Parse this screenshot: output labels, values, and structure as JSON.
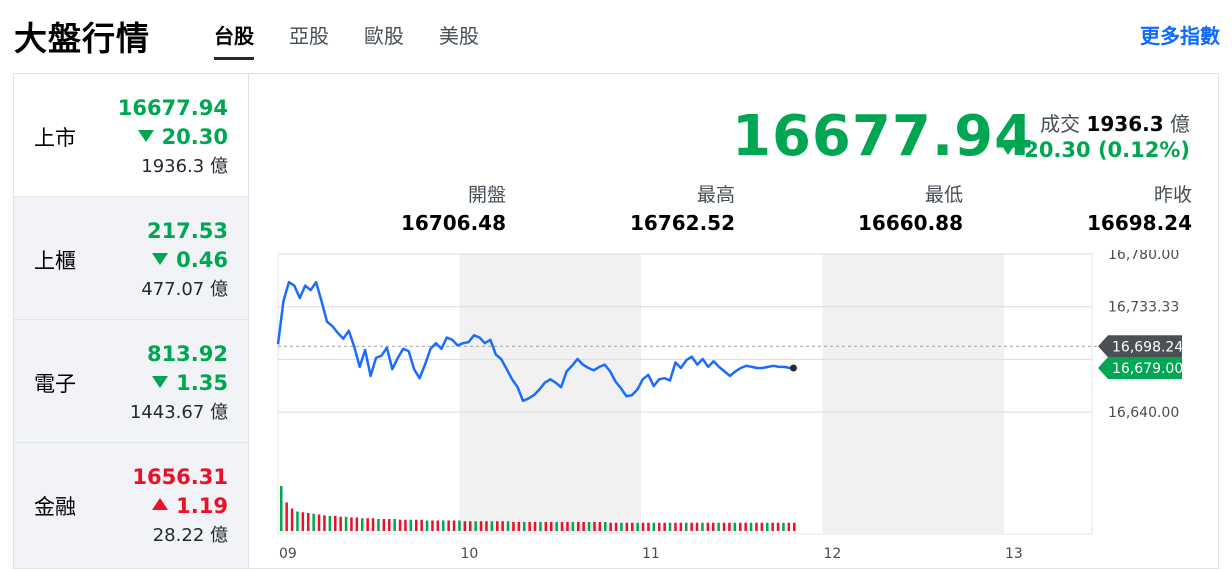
{
  "header": {
    "title": "大盤行情",
    "tabs": [
      "台股",
      "亞股",
      "歐股",
      "美股"
    ],
    "active_tab": "台股",
    "more_label": "更多指數"
  },
  "indices": [
    {
      "name": "上市",
      "price": "16677.94",
      "change": "20.30",
      "direction": "down",
      "volume": "1936.3 億"
    },
    {
      "name": "上櫃",
      "price": "217.53",
      "change": "0.46",
      "direction": "down",
      "volume": "477.07 億"
    },
    {
      "name": "電子",
      "price": "813.92",
      "change": "1.35",
      "direction": "down",
      "volume": "1443.67 億"
    },
    {
      "name": "金融",
      "price": "1656.31",
      "change": "1.19",
      "direction": "up",
      "volume": "28.22 億"
    }
  ],
  "detail": {
    "price": "16677.94",
    "turnover_label": "成交",
    "turnover_value": "1936.3",
    "turnover_unit": "億",
    "change": "20.30 (0.12%)",
    "stats": [
      {
        "label": "開盤",
        "value": "16706.48"
      },
      {
        "label": "最高",
        "value": "16762.52"
      },
      {
        "label": "最低",
        "value": "16660.88"
      },
      {
        "label": "昨收",
        "value": "16698.24"
      }
    ]
  },
  "colors": {
    "down": "#00a651",
    "up": "#eb0f29",
    "line": "#1a6bff",
    "link": "#0f69ff"
  },
  "chart_data": {
    "type": "line",
    "x_ticks": [
      "09",
      "10",
      "11",
      "12",
      "13"
    ],
    "y_ticks": [
      "16,780.00",
      "16,733.33",
      "16,640.00"
    ],
    "ylim": [
      16594,
      16780
    ],
    "xlim": [
      9,
      13.5
    ],
    "prev_close": 16698.24,
    "prev_close_label": "16,698.24",
    "last_label": "16,679.00",
    "x": [
      9.0,
      9.03,
      9.06,
      9.09,
      9.12,
      9.15,
      9.18,
      9.21,
      9.24,
      9.27,
      9.3,
      9.33,
      9.36,
      9.39,
      9.42,
      9.45,
      9.48,
      9.51,
      9.54,
      9.57,
      9.6,
      9.63,
      9.66,
      9.69,
      9.72,
      9.75,
      9.78,
      9.81,
      9.84,
      9.87,
      9.9,
      9.93,
      9.96,
      9.99,
      10.02,
      10.05,
      10.08,
      10.11,
      10.14,
      10.17,
      10.2,
      10.23,
      10.26,
      10.29,
      10.32,
      10.35,
      10.38,
      10.41,
      10.44,
      10.47,
      10.5,
      10.53,
      10.56,
      10.59,
      10.62,
      10.65,
      10.68,
      10.71,
      10.74,
      10.77,
      10.8,
      10.83,
      10.86,
      10.89,
      10.92,
      10.95,
      10.98,
      11.01,
      11.04,
      11.07,
      11.1,
      11.13,
      11.16,
      11.19,
      11.22,
      11.25,
      11.28,
      11.31,
      11.34,
      11.37,
      11.4,
      11.43,
      11.46,
      11.49,
      11.52,
      11.55,
      11.58,
      11.61,
      11.64,
      11.67,
      11.7,
      11.73,
      11.76,
      11.79,
      11.82,
      11.84
    ],
    "y": [
      16700,
      16738,
      16755,
      16752,
      16741,
      16752,
      16748,
      16755,
      16738,
      16720,
      16716,
      16710,
      16705,
      16712,
      16698,
      16680,
      16695,
      16672,
      16688,
      16690,
      16697,
      16678,
      16688,
      16696,
      16694,
      16678,
      16670,
      16682,
      16696,
      16701,
      16696,
      16706,
      16704,
      16699,
      16701,
      16702,
      16708,
      16706,
      16701,
      16704,
      16691,
      16687,
      16678,
      16669,
      16662,
      16650,
      16652,
      16655,
      16660,
      16666,
      16669,
      16666,
      16662,
      16676,
      16681,
      16687,
      16682,
      16679,
      16677,
      16680,
      16682,
      16676,
      16667,
      16661,
      16654,
      16655,
      16660,
      16669,
      16673,
      16663,
      16669,
      16670,
      16668,
      16684,
      16679,
      16686,
      16689,
      16682,
      16687,
      16680,
      16685,
      16680,
      16676,
      16672,
      16676,
      16679,
      16681,
      16680,
      16679,
      16679,
      16680,
      16681,
      16680,
      16680,
      16679,
      16679
    ],
    "volume": [
      60,
      38,
      30,
      26,
      25,
      24,
      23,
      22,
      21,
      20,
      20,
      19,
      19,
      18,
      18,
      17,
      17,
      17,
      16,
      16,
      16,
      16,
      15,
      15,
      15,
      15,
      15,
      14,
      14,
      14,
      14,
      14,
      14,
      14,
      13,
      13,
      13,
      13,
      13,
      13,
      13,
      13,
      13,
      12,
      12,
      12,
      12,
      12,
      12,
      12,
      12,
      12,
      12,
      12,
      12,
      12,
      12,
      12,
      12,
      12,
      12,
      11,
      11,
      11,
      11,
      11,
      11,
      11,
      11,
      11,
      11,
      11,
      11,
      11,
      11,
      11,
      11,
      11,
      11,
      11,
      11,
      11,
      11,
      11,
      11,
      11,
      11,
      11,
      11,
      11,
      11,
      11,
      11,
      11,
      11,
      11
    ]
  }
}
